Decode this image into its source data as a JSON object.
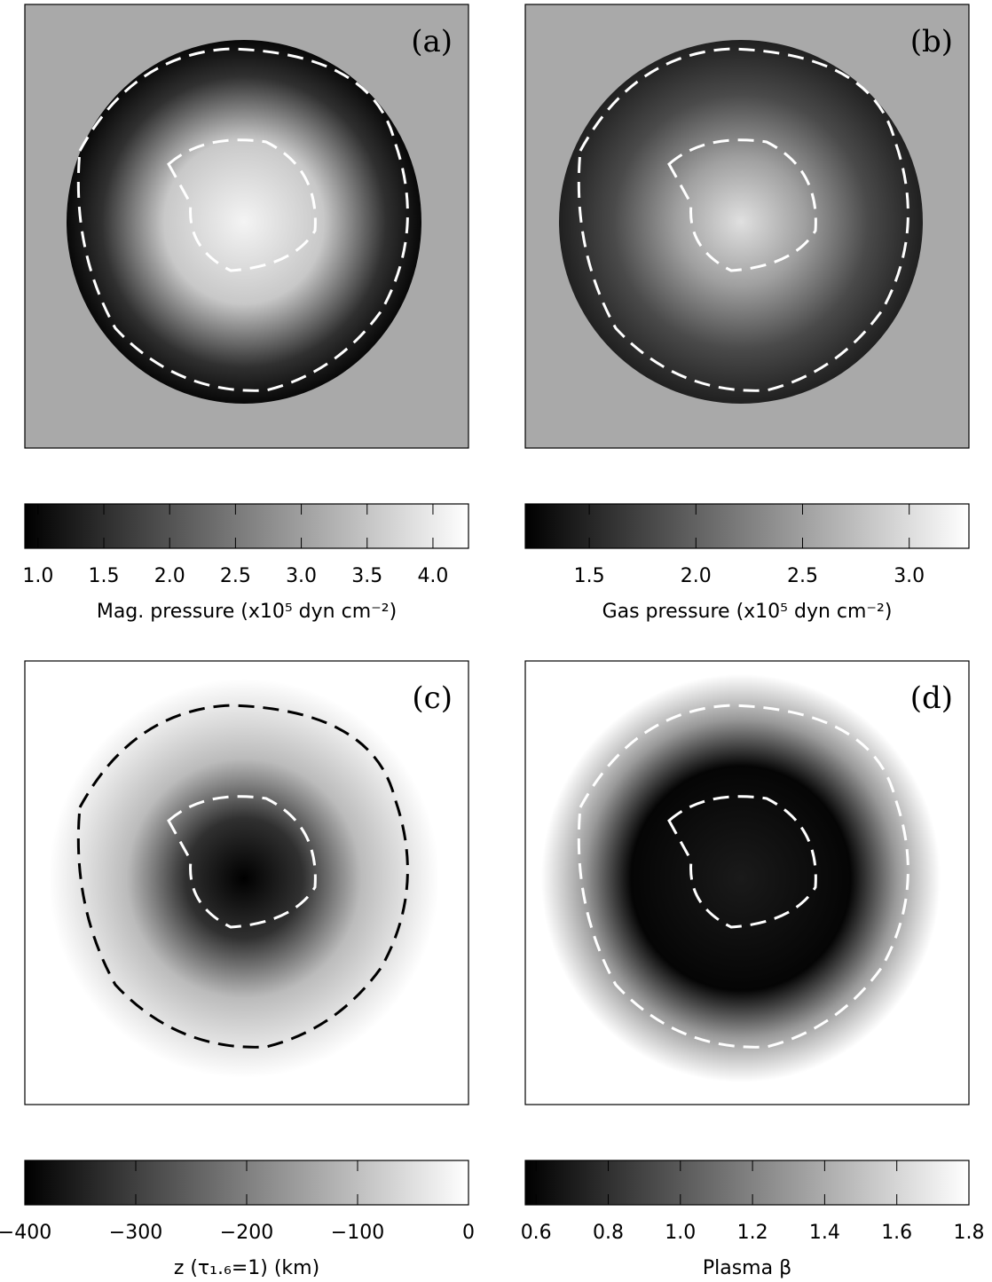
{
  "chart_data": [
    {
      "type": "image",
      "panel_label": "(a)",
      "colormap": [
        "#000000",
        "#ffffff"
      ],
      "colorbar": {
        "label": "Mag. pressure (x10⁵ dyn cm⁻²)",
        "xlim": [
          0.9,
          4.27
        ],
        "xticks": [
          {
            "value": 1,
            "label": "1.0"
          },
          1.5,
          {
            "value": 2,
            "label": "2.0"
          },
          2.5,
          {
            "value": 3,
            "label": "3.0"
          },
          3.5,
          {
            "value": 4,
            "label": "4.0"
          }
        ]
      }
    },
    {
      "type": "image",
      "panel_label": "(b)",
      "colormap": [
        "#000000",
        "#ffffff"
      ],
      "colorbar": {
        "label": "Gas pressure (x10⁵ dyn cm⁻²)",
        "xlim": [
          1.2,
          3.28
        ],
        "xticks": [
          1.5,
          {
            "value": 2,
            "label": "2.0"
          },
          2.5,
          {
            "value": 3,
            "label": "3.0"
          }
        ]
      }
    },
    {
      "type": "image",
      "panel_label": "(c)",
      "colormap": [
        "#000000",
        "#ffffff"
      ],
      "colorbar": {
        "label": "z (τ₁.₆=1) (km)",
        "xlim": [
          -400,
          0
        ],
        "xticks": [
          {
            "value": -400,
            "label": "−400"
          },
          {
            "value": -300,
            "label": "−300"
          },
          {
            "value": -200,
            "label": "−200"
          },
          {
            "value": -100,
            "label": "−100"
          },
          0
        ]
      }
    },
    {
      "type": "image",
      "panel_label": "(d)",
      "colormap": [
        "#000000",
        "#ffffff"
      ],
      "colorbar": {
        "label": "Plasma β",
        "xlim": [
          0.57,
          1.8
        ],
        "xticks": [
          0.6,
          0.8,
          {
            "value": 1,
            "label": "1.0"
          },
          1.2,
          1.4,
          1.6,
          1.8
        ]
      }
    }
  ]
}
